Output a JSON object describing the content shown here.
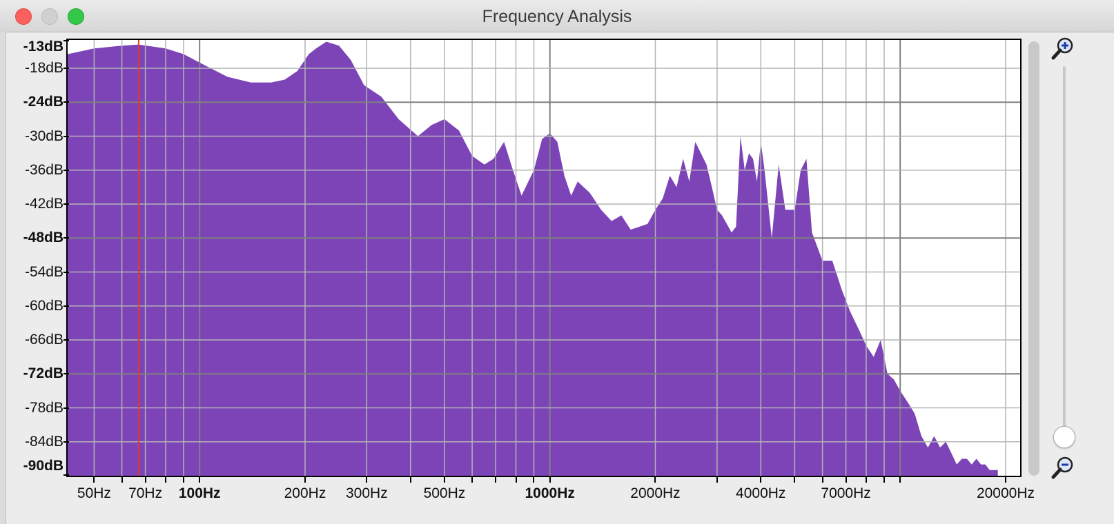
{
  "window": {
    "title": "Frequency Analysis"
  },
  "colors": {
    "spectrum_fill": "#7d44b8",
    "grid": "#9a9a9a",
    "cursor": "#e23a2a",
    "background": "#ffffff"
  },
  "icons": {
    "zoom_in": "magnifier-plus-icon",
    "zoom_out": "magnifier-minus-icon"
  },
  "chart_data": {
    "type": "area",
    "xscale": "log",
    "xlim": [
      42,
      22000
    ],
    "ylim": [
      -90,
      -13
    ],
    "x_ticks": [
      {
        "value": 50,
        "label": "50Hz",
        "bold": false
      },
      {
        "value": 70,
        "label": "70Hz",
        "bold": false
      },
      {
        "value": 100,
        "label": "100Hz",
        "bold": true
      },
      {
        "value": 200,
        "label": "200Hz",
        "bold": false
      },
      {
        "value": 300,
        "label": "300Hz",
        "bold": false
      },
      {
        "value": 500,
        "label": "500Hz",
        "bold": false
      },
      {
        "value": 1000,
        "label": "1000Hz",
        "bold": true
      },
      {
        "value": 2000,
        "label": "2000Hz",
        "bold": false
      },
      {
        "value": 4000,
        "label": "4000Hz",
        "bold": false
      },
      {
        "value": 7000,
        "label": "7000Hz",
        "bold": false
      },
      {
        "value": 20000,
        "label": "20000Hz",
        "bold": false
      }
    ],
    "y_ticks": [
      {
        "value": -13,
        "label": "-13dB",
        "bold": true
      },
      {
        "value": -18,
        "label": "-18dB",
        "bold": false
      },
      {
        "value": -24,
        "label": "-24dB",
        "bold": true
      },
      {
        "value": -30,
        "label": "-30dB",
        "bold": false
      },
      {
        "value": -36,
        "label": "-36dB",
        "bold": false
      },
      {
        "value": -42,
        "label": "-42dB",
        "bold": false
      },
      {
        "value": -48,
        "label": "-48dB",
        "bold": true
      },
      {
        "value": -54,
        "label": "-54dB",
        "bold": false
      },
      {
        "value": -60,
        "label": "-60dB",
        "bold": false
      },
      {
        "value": -66,
        "label": "-66dB",
        "bold": false
      },
      {
        "value": -72,
        "label": "-72dB",
        "bold": true
      },
      {
        "value": -78,
        "label": "-78dB",
        "bold": false
      },
      {
        "value": -84,
        "label": "-84dB",
        "bold": false
      },
      {
        "value": -90,
        "label": "-90dB",
        "bold": true
      }
    ],
    "major_grid_x": [
      100,
      1000,
      10000
    ],
    "minor_grid_x": [
      50,
      60,
      70,
      80,
      90,
      200,
      300,
      400,
      500,
      600,
      700,
      800,
      900,
      2000,
      3000,
      4000,
      5000,
      6000,
      7000,
      8000,
      9000,
      20000
    ],
    "major_grid_y": [
      -24,
      -48,
      -72
    ],
    "minor_grid_y": [
      -18,
      -30,
      -36,
      -42,
      -54,
      -60,
      -66,
      -78,
      -84
    ],
    "cursor_hz": 67,
    "grid": true,
    "series": [
      {
        "x": [
          42,
          50,
          60,
          67,
          80,
          90,
          100,
          120,
          140,
          160,
          175,
          190,
          205,
          215,
          230,
          250,
          270,
          295,
          330,
          370,
          420,
          460,
          500,
          550,
          600,
          650,
          690,
          740,
          780,
          830,
          900,
          950,
          1000,
          1050,
          1100,
          1150,
          1200,
          1300,
          1400,
          1500,
          1600,
          1700,
          1800,
          1900,
          2000,
          2100,
          2200,
          2300,
          2400,
          2500,
          2600,
          2800,
          2900,
          3000,
          3100,
          3300,
          3400,
          3500,
          3600,
          3700,
          3800,
          3900,
          4000,
          4100,
          4300,
          4500,
          4700,
          5000,
          5200,
          5400,
          5600,
          6000,
          6400,
          6800,
          7200,
          7600,
          8000,
          8400,
          8800,
          9200,
          9600,
          10000,
          10500,
          11000,
          11500,
          12000,
          12500,
          13000,
          13500,
          14000,
          14500,
          15000,
          15500,
          16000,
          16500,
          17000,
          17500,
          18000,
          18500,
          19000
        ],
        "y": [
          -15.5,
          -14.5,
          -14,
          -13.8,
          -14.5,
          -15.5,
          -17,
          -19.5,
          -20.5,
          -20.5,
          -20,
          -18.5,
          -15.5,
          -14.5,
          -13.3,
          -14,
          -16.5,
          -21,
          -23,
          -27,
          -30,
          -28,
          -27,
          -29,
          -33.5,
          -35,
          -34,
          -31,
          -35.5,
          -40.5,
          -36,
          -30.5,
          -29.5,
          -31,
          -37,
          -40.5,
          -38,
          -40,
          -43,
          -45,
          -44,
          -46.5,
          -46,
          -45.5,
          -43,
          -41,
          -37,
          -39,
          -34,
          -38,
          -31,
          -35,
          -39,
          -43,
          -44,
          -47,
          -46,
          -30,
          -36,
          -33,
          -34,
          -38,
          -31,
          -36,
          -48,
          -35,
          -43,
          -43,
          -36,
          -34,
          -47,
          -52,
          -52,
          -57,
          -61,
          -64,
          -67,
          -69,
          -66,
          -72,
          -73,
          -75,
          -77,
          -79,
          -83,
          -85,
          -83,
          -85,
          -84,
          -86,
          -88,
          -87,
          -87,
          -88,
          -87,
          -88,
          -88,
          -89,
          -89,
          -89
        ]
      }
    ]
  }
}
